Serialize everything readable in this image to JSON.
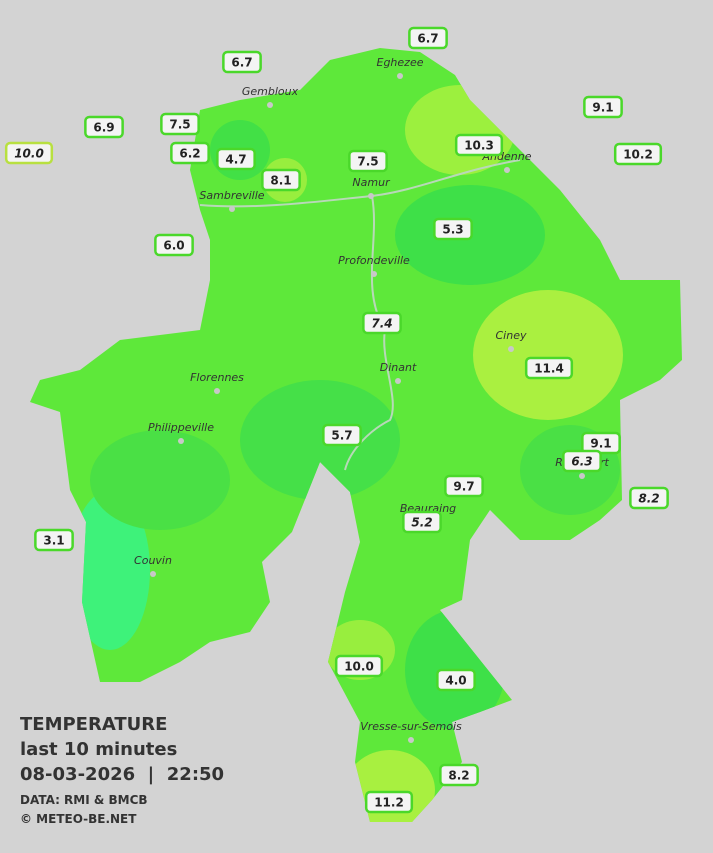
{
  "cities": [
    "Eghezee",
    "Gembloux",
    "Andenne",
    "Sambreville",
    "Namur",
    "Profondeville",
    "Ciney",
    "Dinant",
    "Florennes",
    "Philippeville",
    "Beauraing",
    "Rochefort",
    "Couvin",
    "Vresse-sur-Semois"
  ],
  "stations": [
    "6.7",
    "6.7",
    "9.1",
    "6.9",
    "7.5",
    "10.0",
    "10.3",
    "10.2",
    "6.2",
    "4.7",
    "7.5",
    "8.1",
    "5.3",
    "6.0",
    "7.4",
    "11.4",
    "5.7",
    "9.1",
    "6.3",
    "9.7",
    "8.2",
    "5.2",
    "3.1",
    "10.0",
    "4.0",
    "8.2",
    "11.2"
  ],
  "legend": {
    "title": "TEMPERATURE",
    "period": "last 10 minutes",
    "datetime": "08-03-2026  |  22:50",
    "source": "DATA: RMI & BMCB",
    "copyright": "© METEO-BE.NET"
  }
}
